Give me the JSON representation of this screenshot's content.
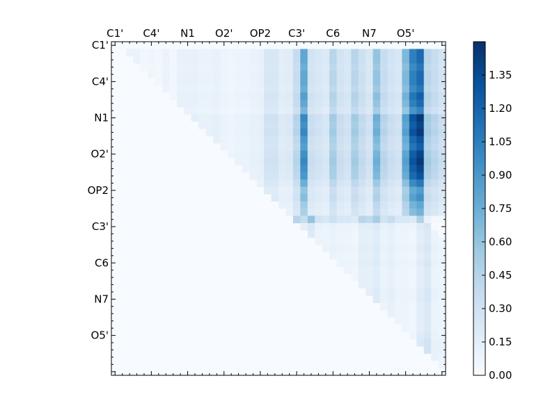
{
  "chart_data": {
    "type": "heatmap",
    "title": "",
    "xlabel": "",
    "ylabel": "",
    "grid": false,
    "x_tick_labels": [
      "C1'",
      "C4'",
      "N1",
      "O2'",
      "OP2",
      "C3'",
      "C6",
      "N7",
      "O5'"
    ],
    "y_tick_labels": [
      "C1'",
      "C4'",
      "N1",
      "O2'",
      "OP2",
      "C3'",
      "C6",
      "N7",
      "O5'"
    ],
    "label_every_n_cells": 5,
    "colormap": "Blues",
    "color_low": "#f7fbff",
    "color_high": "#08306b",
    "vmin": 0.0,
    "vmax": 1.5,
    "colorbar_ticks": [
      "0.00",
      "0.15",
      "0.30",
      "0.45",
      "0.60",
      "0.75",
      "0.90",
      "1.05",
      "1.20",
      "1.35"
    ],
    "n_cells": 46,
    "matrix_upper_triangular": true,
    "column_value_profile": [
      0.0,
      0.0,
      0.12,
      0.12,
      0.06,
      0.08,
      0.06,
      0.12,
      0.06,
      0.14,
      0.14,
      0.14,
      0.12,
      0.12,
      0.14,
      0.1,
      0.08,
      0.1,
      0.1,
      0.12,
      0.14,
      0.3,
      0.3,
      0.2,
      0.22,
      0.45,
      1.0,
      0.35,
      0.3,
      0.25,
      0.55,
      0.35,
      0.3,
      0.55,
      0.4,
      0.3,
      0.75,
      0.45,
      0.35,
      0.3,
      0.85,
      1.3,
      1.45,
      0.55,
      0.45,
      0.35
    ],
    "column_value_profile_lower_block": [
      0.3,
      0.35,
      0.25,
      0.55,
      0.45,
      0.75,
      0.35,
      0.3,
      0.4,
      0.3,
      0.3,
      0.25,
      0.55,
      0.5,
      0.65,
      0.35,
      0.45,
      0.3,
      0.3,
      0.25,
      0.6,
      0.8,
      0.35,
      0.3
    ],
    "row_value_scale": [
      0.0,
      0.8,
      0.8,
      0.75,
      0.8,
      0.8,
      0.75,
      0.85,
      0.8,
      0.7,
      1.0,
      0.95,
      1.0,
      0.9,
      0.85,
      0.95,
      1.0,
      0.95,
      0.9,
      0.75,
      0.6,
      0.65,
      0.55,
      0.5,
      0.8,
      0.3,
      0.25,
      0.25,
      0.3,
      0.25,
      0.3,
      0.25,
      0.25,
      0.25,
      0.3,
      0.3,
      0.25,
      0.25,
      0.25,
      0.25,
      0.3,
      0.35,
      0.35,
      0.3,
      0.25,
      0.0
    ]
  }
}
